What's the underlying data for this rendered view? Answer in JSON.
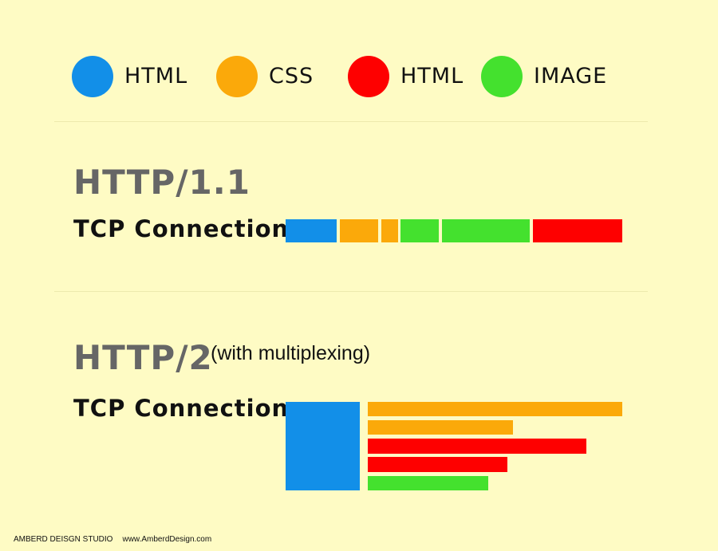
{
  "colors": {
    "background": "#fefbc4",
    "html_blue": "#128fe8",
    "css_orange": "#fba90a",
    "html_red": "#fe0000",
    "image_green": "#44e12e"
  },
  "legend": [
    {
      "label": "HTML",
      "color": "#128fe8"
    },
    {
      "label": "CSS",
      "color": "#fba90a"
    },
    {
      "label": "HTML",
      "color": "#fe0000"
    },
    {
      "label": "IMAGE",
      "color": "#44e12e"
    }
  ],
  "http1": {
    "title": "HTTP/1.1",
    "row_label": "TCP Connection"
  },
  "http2": {
    "title": "HTTP/2",
    "subtitle": "(with multiplexing)",
    "row_label": "TCP Connection"
  },
  "footer": {
    "studio": "AMBERD DEISGN STUDIO",
    "url": "www.AmberdDesign.com"
  }
}
